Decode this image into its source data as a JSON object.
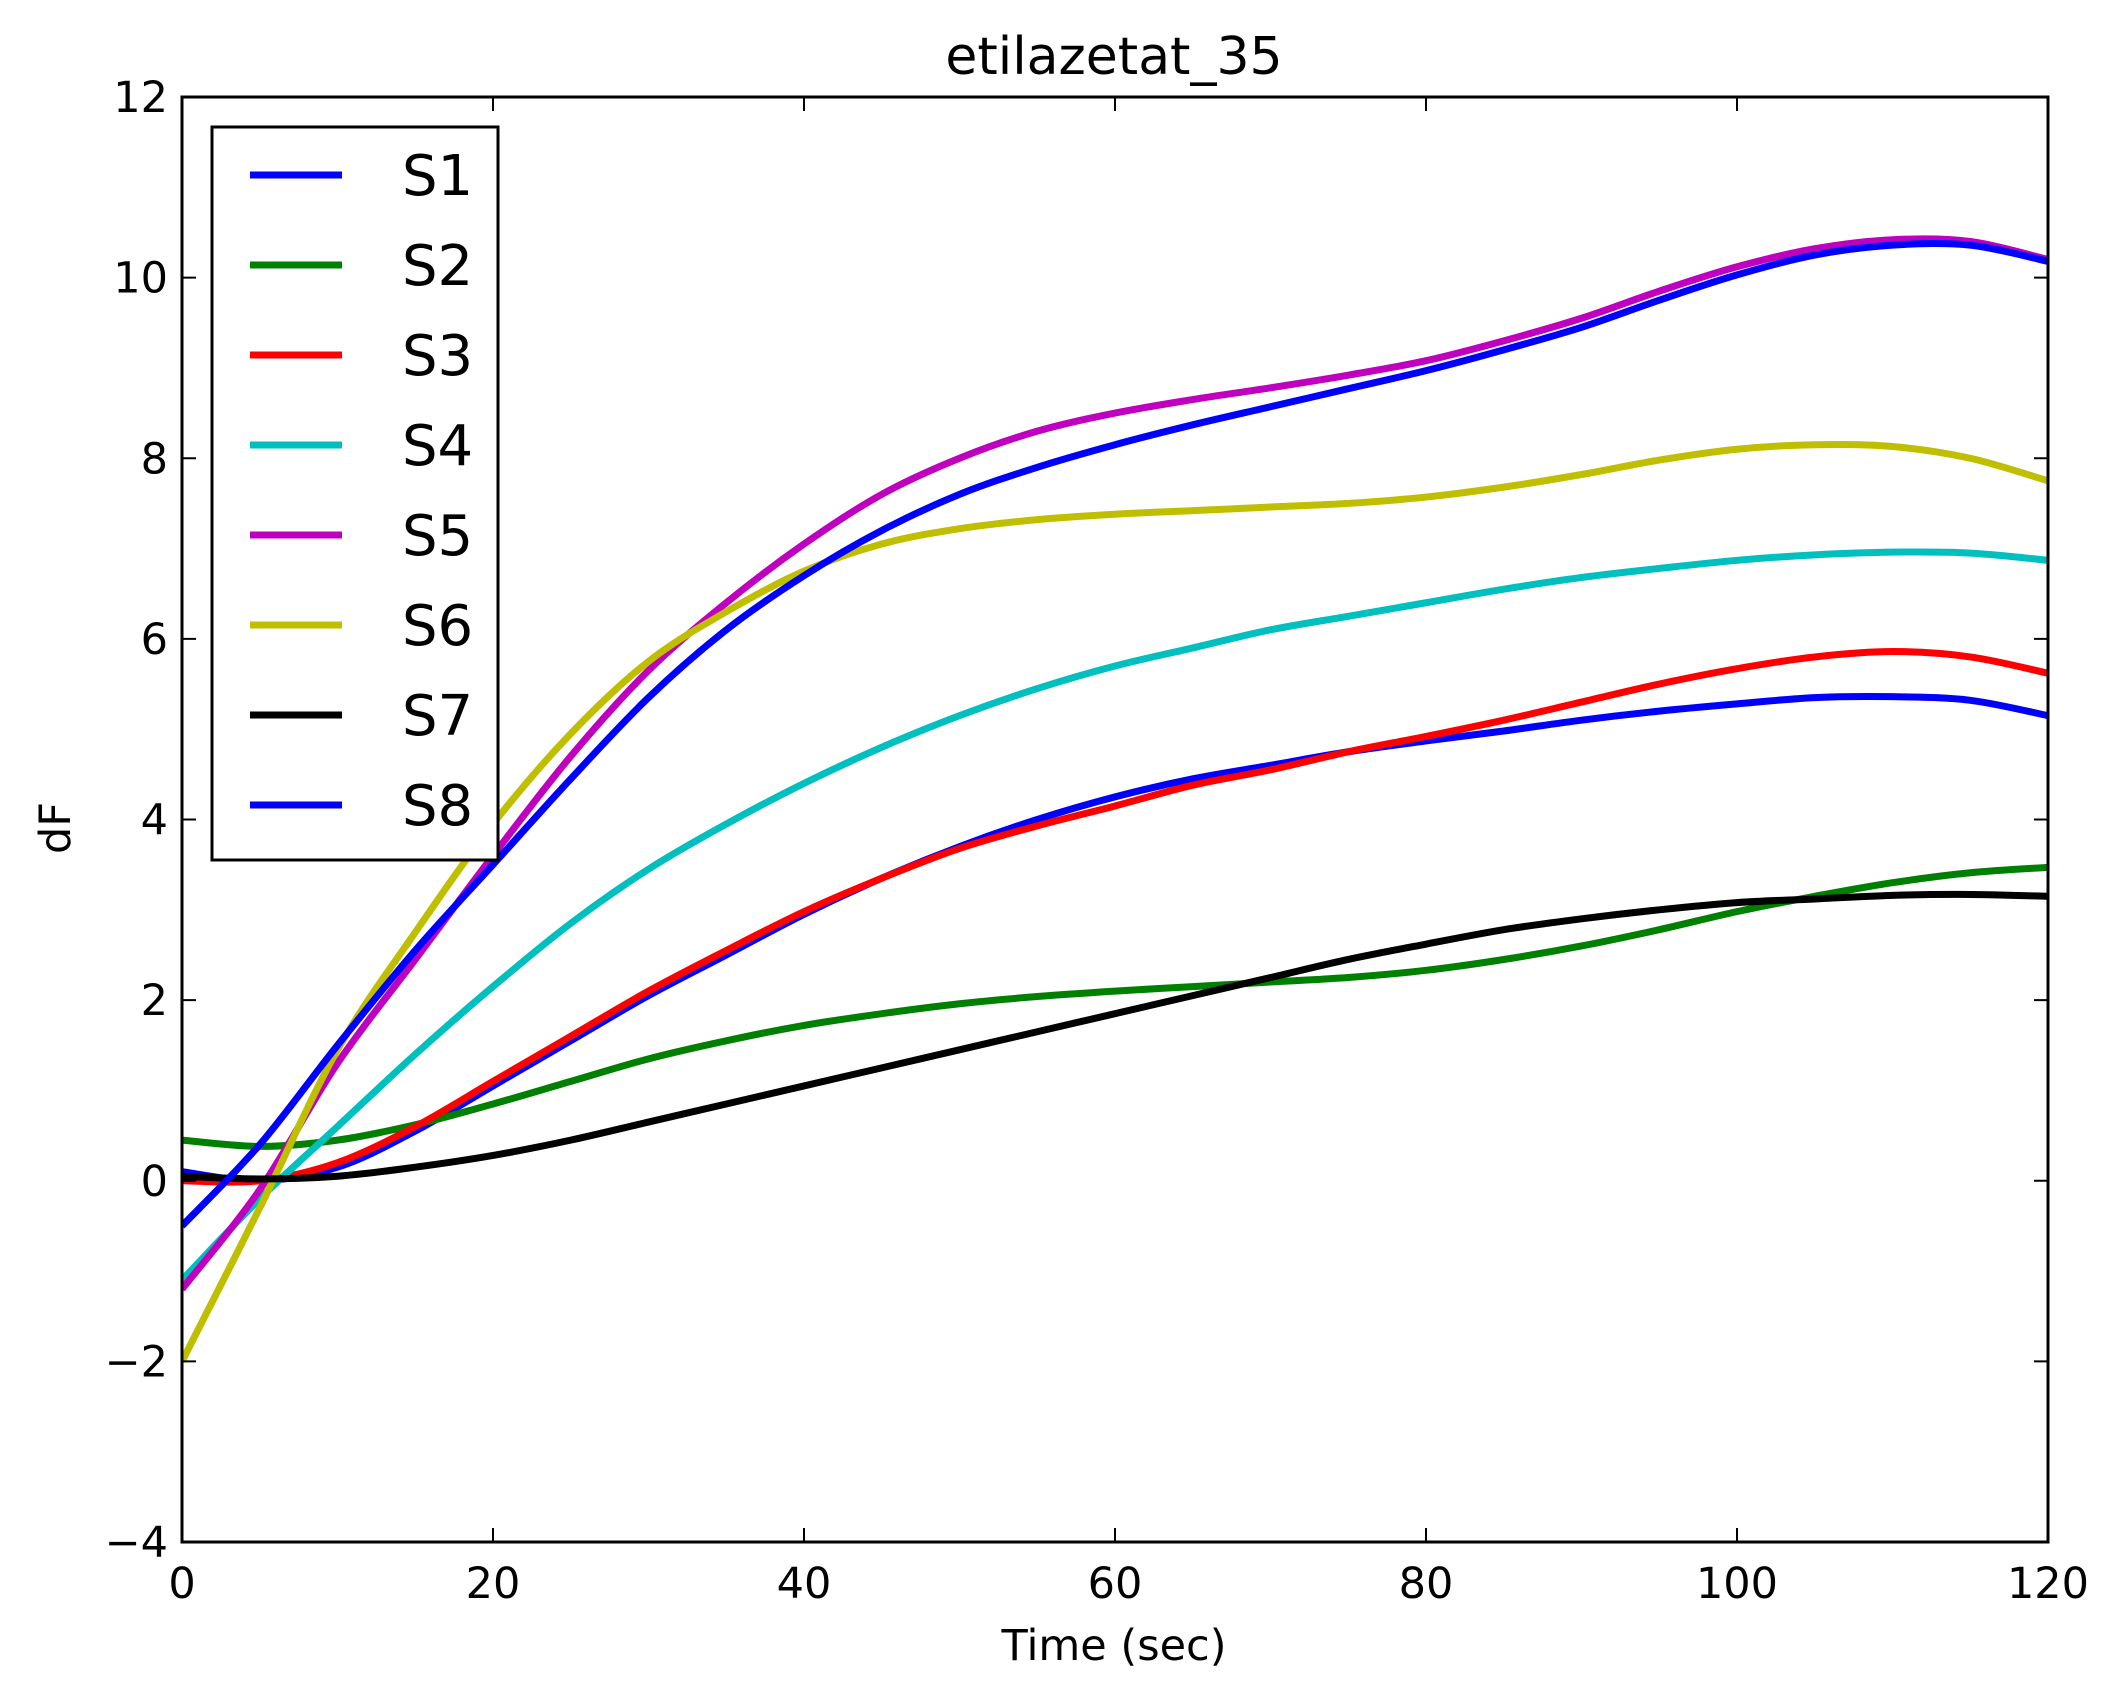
{
  "chart_data": {
    "type": "line",
    "title": "etilazetat_35",
    "xlabel": "Time (sec)",
    "ylabel": "dF",
    "xlim": [
      0,
      120
    ],
    "ylim": [
      -4,
      12
    ],
    "xticks": [
      0,
      20,
      40,
      60,
      80,
      100,
      120
    ],
    "yticks": [
      -4,
      -2,
      0,
      2,
      4,
      6,
      8,
      10,
      12
    ],
    "ytick_labels": [
      "−4",
      "−2",
      "0",
      "2",
      "4",
      "6",
      "8",
      "10",
      "12"
    ],
    "xtick_labels": [
      "0",
      "20",
      "40",
      "60",
      "80",
      "100",
      "120"
    ],
    "grid": false,
    "legend_position": "top-left",
    "x": [
      0,
      5,
      10,
      15,
      20,
      25,
      30,
      35,
      40,
      45,
      50,
      55,
      60,
      65,
      70,
      75,
      80,
      85,
      90,
      95,
      100,
      105,
      110,
      115,
      120
    ],
    "series": [
      {
        "name": "S1",
        "color": "#0000ff",
        "values": [
          0.1,
          0.0,
          0.15,
          0.55,
          1.05,
          1.55,
          2.05,
          2.5,
          2.95,
          3.35,
          3.7,
          4.0,
          4.25,
          4.45,
          4.6,
          4.75,
          4.87,
          4.98,
          5.1,
          5.2,
          5.28,
          5.35,
          5.36,
          5.32,
          5.15
        ]
      },
      {
        "name": "S2",
        "color": "#008000",
        "values": [
          0.45,
          0.38,
          0.45,
          0.62,
          0.85,
          1.1,
          1.35,
          1.55,
          1.72,
          1.85,
          1.96,
          2.04,
          2.1,
          2.15,
          2.2,
          2.25,
          2.33,
          2.45,
          2.6,
          2.78,
          2.98,
          3.15,
          3.3,
          3.41,
          3.47
        ]
      },
      {
        "name": "S3",
        "color": "#ff0000",
        "values": [
          0.0,
          0.0,
          0.2,
          0.6,
          1.1,
          1.6,
          2.1,
          2.55,
          2.98,
          3.35,
          3.68,
          3.93,
          4.15,
          4.38,
          4.55,
          4.75,
          4.92,
          5.1,
          5.3,
          5.5,
          5.67,
          5.8,
          5.86,
          5.8,
          5.62
        ]
      },
      {
        "name": "S4",
        "color": "#00bfbf",
        "values": [
          -1.1,
          -0.2,
          0.6,
          1.4,
          2.15,
          2.85,
          3.45,
          3.95,
          4.4,
          4.8,
          5.15,
          5.45,
          5.7,
          5.9,
          6.1,
          6.25,
          6.4,
          6.55,
          6.68,
          6.78,
          6.87,
          6.93,
          6.96,
          6.95,
          6.87
        ]
      },
      {
        "name": "S5",
        "color": "#bf00bf",
        "values": [
          -1.2,
          -0.1,
          1.3,
          2.45,
          3.6,
          4.7,
          5.65,
          6.4,
          7.05,
          7.6,
          8.0,
          8.3,
          8.5,
          8.65,
          8.78,
          8.92,
          9.08,
          9.3,
          9.55,
          9.85,
          10.12,
          10.32,
          10.42,
          10.4,
          10.2
        ]
      },
      {
        "name": "S6",
        "color": "#bfbf00",
        "values": [
          -2.0,
          -0.3,
          1.45,
          2.75,
          3.95,
          4.95,
          5.75,
          6.3,
          6.75,
          7.05,
          7.22,
          7.32,
          7.38,
          7.42,
          7.46,
          7.5,
          7.57,
          7.68,
          7.82,
          7.98,
          8.1,
          8.15,
          8.13,
          8.0,
          7.75
        ]
      },
      {
        "name": "S7",
        "color": "#000000",
        "values": [
          0.05,
          0.02,
          0.05,
          0.15,
          0.28,
          0.45,
          0.65,
          0.85,
          1.05,
          1.25,
          1.45,
          1.65,
          1.85,
          2.05,
          2.25,
          2.45,
          2.62,
          2.78,
          2.9,
          3.0,
          3.08,
          3.12,
          3.16,
          3.17,
          3.15
        ]
      },
      {
        "name": "S8",
        "color": "#0000ff",
        "values": [
          -0.5,
          0.4,
          1.5,
          2.55,
          3.5,
          4.45,
          5.35,
          6.1,
          6.7,
          7.2,
          7.6,
          7.9,
          8.15,
          8.37,
          8.57,
          8.77,
          8.97,
          9.2,
          9.45,
          9.75,
          10.03,
          10.25,
          10.36,
          10.36,
          10.18
        ]
      }
    ]
  }
}
